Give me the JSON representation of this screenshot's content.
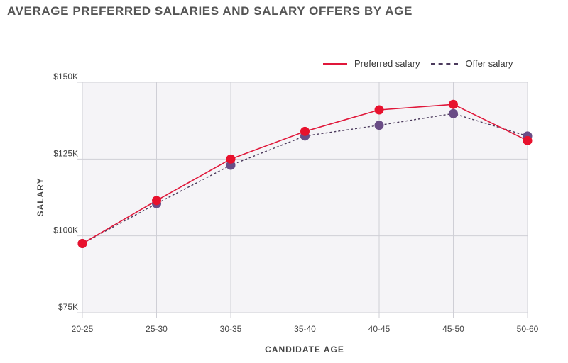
{
  "chart_data": {
    "type": "line",
    "title": "AVERAGE PREFERRED SALARIES AND SALARY OFFERS BY AGE",
    "xlabel": "CANDIDATE AGE",
    "ylabel": "SALARY",
    "categories": [
      "20-25",
      "25-30",
      "30-35",
      "35-40",
      "40-45",
      "45-50",
      "50-60"
    ],
    "y_ticks": [
      "$75K",
      "$100K",
      "$125K",
      "$150K"
    ],
    "ylim": [
      75000,
      150000
    ],
    "grid": true,
    "legend_position": "top-right",
    "series": [
      {
        "name": "Preferred salary",
        "style": "solid",
        "color": "#e0173a",
        "marker_color": "#e8112d",
        "values": [
          97500,
          111500,
          125000,
          134000,
          141000,
          142800,
          131000
        ]
      },
      {
        "name": "Offer salary",
        "style": "dashed",
        "color": "#4b3a5c",
        "marker_color": "#6a4c86",
        "values": [
          97500,
          110500,
          123000,
          132500,
          136000,
          139800,
          132500
        ]
      }
    ]
  }
}
